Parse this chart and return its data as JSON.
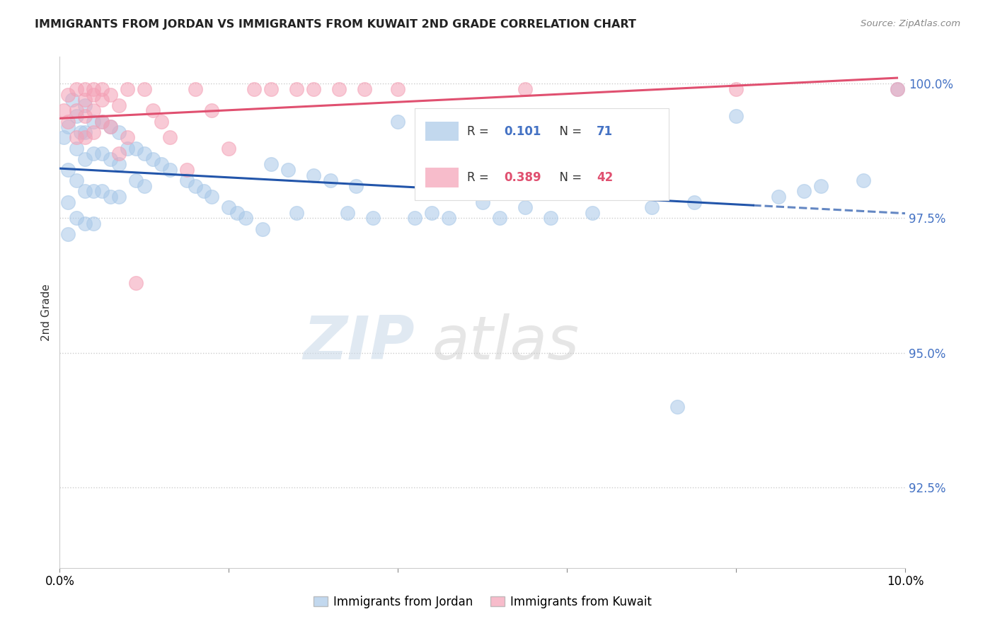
{
  "title": "IMMIGRANTS FROM JORDAN VS IMMIGRANTS FROM KUWAIT 2ND GRADE CORRELATION CHART",
  "source": "Source: ZipAtlas.com",
  "xlabel_jordan": "Immigrants from Jordan",
  "xlabel_kuwait": "Immigrants from Kuwait",
  "ylabel": "2nd Grade",
  "r_jordan": 0.101,
  "n_jordan": 71,
  "r_kuwait": 0.389,
  "n_kuwait": 42,
  "color_jordan": "#a8c8e8",
  "color_kuwait": "#f4a0b5",
  "color_jordan_line": "#2255aa",
  "color_kuwait_line": "#e05070",
  "watermark_zip": "ZIP",
  "watermark_atlas": "atlas",
  "xlim": [
    0.0,
    0.1
  ],
  "ylim": [
    0.91,
    1.005
  ],
  "yticks": [
    0.925,
    0.95,
    0.975,
    1.0
  ],
  "ytick_labels": [
    "92.5%",
    "95.0%",
    "97.5%",
    "100.0%"
  ],
  "xticks": [
    0.0,
    0.02,
    0.04,
    0.06,
    0.08,
    0.1
  ],
  "xtick_labels": [
    "0.0%",
    "",
    "",
    "",
    "",
    "10.0%"
  ],
  "jordan_x": [
    0.0005,
    0.001,
    0.001,
    0.001,
    0.001,
    0.0015,
    0.002,
    0.002,
    0.002,
    0.002,
    0.0025,
    0.003,
    0.003,
    0.003,
    0.003,
    0.003,
    0.004,
    0.004,
    0.004,
    0.004,
    0.005,
    0.005,
    0.005,
    0.006,
    0.006,
    0.006,
    0.007,
    0.007,
    0.007,
    0.008,
    0.009,
    0.009,
    0.01,
    0.01,
    0.011,
    0.012,
    0.013,
    0.015,
    0.016,
    0.017,
    0.018,
    0.02,
    0.021,
    0.022,
    0.024,
    0.025,
    0.027,
    0.028,
    0.03,
    0.032,
    0.034,
    0.035,
    0.037,
    0.04,
    0.042,
    0.044,
    0.046,
    0.05,
    0.052,
    0.055,
    0.058,
    0.063,
    0.07,
    0.073,
    0.075,
    0.08,
    0.085,
    0.088,
    0.09,
    0.095,
    0.099
  ],
  "jordan_y": [
    0.99,
    0.992,
    0.984,
    0.978,
    0.972,
    0.997,
    0.994,
    0.988,
    0.982,
    0.975,
    0.991,
    0.996,
    0.991,
    0.986,
    0.98,
    0.974,
    0.993,
    0.987,
    0.98,
    0.974,
    0.993,
    0.987,
    0.98,
    0.992,
    0.986,
    0.979,
    0.991,
    0.985,
    0.979,
    0.988,
    0.988,
    0.982,
    0.987,
    0.981,
    0.986,
    0.985,
    0.984,
    0.982,
    0.981,
    0.98,
    0.979,
    0.977,
    0.976,
    0.975,
    0.973,
    0.985,
    0.984,
    0.976,
    0.983,
    0.982,
    0.976,
    0.981,
    0.975,
    0.993,
    0.975,
    0.976,
    0.975,
    0.978,
    0.975,
    0.977,
    0.975,
    0.976,
    0.977,
    0.94,
    0.978,
    0.994,
    0.979,
    0.98,
    0.981,
    0.982,
    0.999
  ],
  "kuwait_x": [
    0.0005,
    0.001,
    0.001,
    0.002,
    0.002,
    0.002,
    0.003,
    0.003,
    0.003,
    0.003,
    0.004,
    0.004,
    0.004,
    0.004,
    0.005,
    0.005,
    0.005,
    0.006,
    0.006,
    0.007,
    0.007,
    0.008,
    0.008,
    0.009,
    0.01,
    0.011,
    0.012,
    0.013,
    0.015,
    0.016,
    0.018,
    0.02,
    0.023,
    0.025,
    0.028,
    0.03,
    0.033,
    0.036,
    0.04,
    0.055,
    0.08,
    0.099
  ],
  "kuwait_y": [
    0.995,
    0.998,
    0.993,
    0.995,
    0.99,
    0.999,
    0.997,
    0.994,
    0.99,
    0.999,
    0.998,
    0.995,
    0.991,
    0.999,
    0.997,
    0.993,
    0.999,
    0.998,
    0.992,
    0.996,
    0.987,
    0.99,
    0.999,
    0.963,
    0.999,
    0.995,
    0.993,
    0.99,
    0.984,
    0.999,
    0.995,
    0.988,
    0.999,
    0.999,
    0.999,
    0.999,
    0.999,
    0.999,
    0.999,
    0.999,
    0.999,
    0.999
  ]
}
